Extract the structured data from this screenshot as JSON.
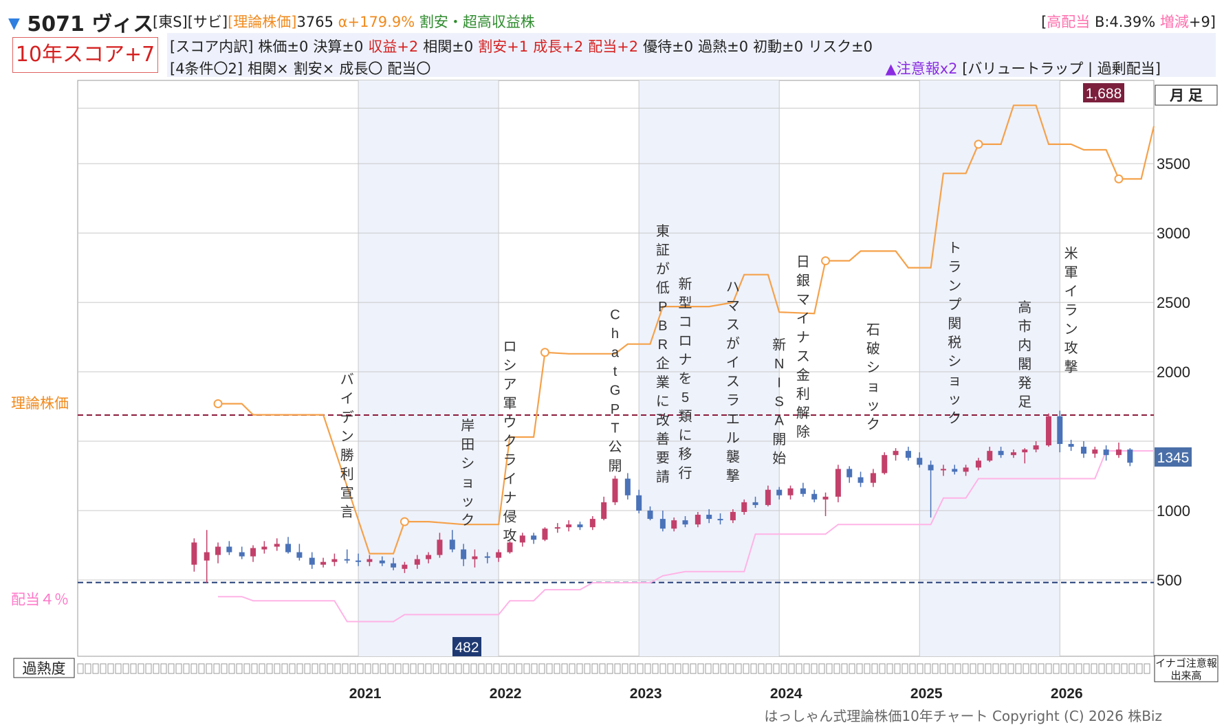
{
  "header": {
    "title": "5071 ヴィス",
    "market": "[東S]",
    "sector": "[サビ]",
    "theory_label": "[理論株価]",
    "theory_value": "3765",
    "alpha": "α+179.9%",
    "tags": "割安・超高収益株",
    "right_bracket_open": "[",
    "right_label": "高配当",
    "right_b": "B:4.39%",
    "right_delta_label": "増減",
    "right_delta_value": "+9]"
  },
  "score": {
    "label": "10年スコア+7"
  },
  "breakdown": {
    "line1": [
      {
        "text": "[スコア内訳]",
        "color": "black"
      },
      {
        "text": "株価±0",
        "color": "black"
      },
      {
        "text": "決算±0",
        "color": "black"
      },
      {
        "text": "収益+2",
        "color": "red"
      },
      {
        "text": "相関±0",
        "color": "black"
      },
      {
        "text": "割安+1",
        "color": "red"
      },
      {
        "text": "成長+2",
        "color": "red"
      },
      {
        "text": "配当+2",
        "color": "red"
      },
      {
        "text": "優待±0",
        "color": "black"
      },
      {
        "text": "過熱±0",
        "color": "black"
      },
      {
        "text": "初動±0",
        "color": "black"
      },
      {
        "text": "リスク±0",
        "color": "black"
      }
    ],
    "line2": [
      {
        "text": "[4条件〇2]",
        "color": "black"
      },
      {
        "text": "相関×",
        "color": "black"
      },
      {
        "text": "割安×",
        "color": "black"
      },
      {
        "text": "成長〇",
        "color": "black"
      },
      {
        "text": "配当〇",
        "color": "black"
      }
    ],
    "caution_label": "▲注意報x2",
    "caution_detail": "[バリュートラップ | 過剰配当]"
  },
  "controls": {
    "period_button": "月 足",
    "overheat_label": "過熱度",
    "inago_label": "イナゴ注意報",
    "volume_label": "出来高"
  },
  "footer": {
    "copyright": "はっしゃん式理論株価10年チャート Copyright (C) 2026 株Biz"
  },
  "colors": {
    "up_candle": "#c2406a",
    "down_candle": "#4a72b8",
    "theory_line": "#f5a14a",
    "dividend_line": "#ffb3e6",
    "theory_ref": "#8b1a3a",
    "dividend_ref": "#1f3a73",
    "shade": "#eef2fb"
  },
  "chart_data": {
    "type": "candlestick",
    "y_ticks": [
      500,
      1000,
      1500,
      2000,
      2500,
      3000,
      3500
    ],
    "y_tick_labels": [
      "500",
      "1000",
      "",
      "2000",
      "2500",
      "3000",
      "3500"
    ],
    "ylim": [
      -50,
      4100
    ],
    "x_labels": [
      "2021",
      "2022",
      "2023",
      "2024",
      "2025",
      "2026"
    ],
    "xlim": [
      2019.0,
      2026.67
    ],
    "shaded_years": [
      [
        2021,
        2022
      ],
      [
        2023,
        2024
      ],
      [
        2025,
        2026
      ]
    ],
    "current_price": "1345",
    "period_high": "1,688",
    "period_low": "482",
    "theory_ref_label": "理論株価",
    "theory_ref_value": 1688,
    "dividend_ref_label": "配当４％",
    "dividend_ref_value": 482,
    "theory_price_line": [
      [
        2020.0,
        1770
      ],
      [
        2020.17,
        1770
      ],
      [
        2020.25,
        1690
      ],
      [
        2020.67,
        1690
      ],
      [
        2020.75,
        1690
      ],
      [
        2021.08,
        690
      ],
      [
        2021.25,
        690
      ],
      [
        2021.33,
        920
      ],
      [
        2021.5,
        920
      ],
      [
        2021.75,
        900
      ],
      [
        2022.0,
        900
      ],
      [
        2022.08,
        1530
      ],
      [
        2022.25,
        1530
      ],
      [
        2022.33,
        2140
      ],
      [
        2022.5,
        2130
      ],
      [
        2022.83,
        2130
      ],
      [
        2022.92,
        2200
      ],
      [
        2023.08,
        2200
      ],
      [
        2023.17,
        2470
      ],
      [
        2023.42,
        2470
      ],
      [
        2023.5,
        2470
      ],
      [
        2023.67,
        2500
      ],
      [
        2023.75,
        2700
      ],
      [
        2023.92,
        2700
      ],
      [
        2024.0,
        2430
      ],
      [
        2024.25,
        2420
      ],
      [
        2024.33,
        2800
      ],
      [
        2024.5,
        2800
      ],
      [
        2024.58,
        2870
      ],
      [
        2024.83,
        2870
      ],
      [
        2024.92,
        2750
      ],
      [
        2025.08,
        2750
      ],
      [
        2025.17,
        3430
      ],
      [
        2025.33,
        3430
      ],
      [
        2025.42,
        3640
      ],
      [
        2025.58,
        3640
      ],
      [
        2025.67,
        3920
      ],
      [
        2025.83,
        3920
      ],
      [
        2025.92,
        3640
      ],
      [
        2026.08,
        3640
      ],
      [
        2026.17,
        3600
      ],
      [
        2026.33,
        3600
      ],
      [
        2026.42,
        3390
      ],
      [
        2026.58,
        3390
      ],
      [
        2026.67,
        3770
      ]
    ],
    "theory_markers": [
      [
        2020.0,
        1770
      ],
      [
        2021.33,
        920
      ],
      [
        2022.33,
        2140
      ],
      [
        2024.33,
        2800
      ],
      [
        2025.42,
        3640
      ],
      [
        2026.42,
        3390
      ]
    ],
    "dividend_price_line": [
      [
        2020.0,
        380
      ],
      [
        2020.17,
        380
      ],
      [
        2020.25,
        350
      ],
      [
        2020.75,
        350
      ],
      [
        2020.83,
        350
      ],
      [
        2020.92,
        200
      ],
      [
        2021.25,
        200
      ],
      [
        2021.33,
        250
      ],
      [
        2021.83,
        250
      ],
      [
        2022.0,
        250
      ],
      [
        2022.08,
        350
      ],
      [
        2022.25,
        350
      ],
      [
        2022.33,
        430
      ],
      [
        2022.58,
        430
      ],
      [
        2022.67,
        480
      ],
      [
        2023.08,
        480
      ],
      [
        2023.17,
        530
      ],
      [
        2023.33,
        560
      ],
      [
        2023.75,
        560
      ],
      [
        2023.83,
        830
      ],
      [
        2024.33,
        830
      ],
      [
        2024.42,
        900
      ],
      [
        2024.83,
        900
      ],
      [
        2025.08,
        900
      ],
      [
        2025.17,
        1090
      ],
      [
        2025.33,
        1090
      ],
      [
        2025.42,
        1230
      ],
      [
        2025.75,
        1230
      ],
      [
        2026.08,
        1230
      ],
      [
        2026.25,
        1230
      ],
      [
        2026.33,
        1430
      ],
      [
        2026.67,
        1430
      ]
    ],
    "candles": [
      {
        "d": 2019.83,
        "o": 610,
        "h": 800,
        "l": 560,
        "c": 770
      },
      {
        "d": 2019.92,
        "o": 640,
        "h": 860,
        "l": 480,
        "c": 700
      },
      {
        "d": 2020.0,
        "o": 680,
        "h": 770,
        "l": 620,
        "c": 740
      },
      {
        "d": 2020.08,
        "o": 740,
        "h": 780,
        "l": 680,
        "c": 700
      },
      {
        "d": 2020.17,
        "o": 700,
        "h": 740,
        "l": 650,
        "c": 670
      },
      {
        "d": 2020.25,
        "o": 670,
        "h": 750,
        "l": 630,
        "c": 730
      },
      {
        "d": 2020.33,
        "o": 720,
        "h": 780,
        "l": 690,
        "c": 740
      },
      {
        "d": 2020.42,
        "o": 740,
        "h": 800,
        "l": 710,
        "c": 760
      },
      {
        "d": 2020.5,
        "o": 760,
        "h": 810,
        "l": 690,
        "c": 700
      },
      {
        "d": 2020.58,
        "o": 700,
        "h": 760,
        "l": 640,
        "c": 660
      },
      {
        "d": 2020.67,
        "o": 660,
        "h": 700,
        "l": 580,
        "c": 610
      },
      {
        "d": 2020.75,
        "o": 610,
        "h": 660,
        "l": 590,
        "c": 630
      },
      {
        "d": 2020.83,
        "o": 630,
        "h": 690,
        "l": 600,
        "c": 650
      },
      {
        "d": 2020.92,
        "o": 650,
        "h": 720,
        "l": 620,
        "c": 640
      },
      {
        "d": 2021.0,
        "o": 640,
        "h": 690,
        "l": 600,
        "c": 630
      },
      {
        "d": 2021.08,
        "o": 630,
        "h": 680,
        "l": 600,
        "c": 650
      },
      {
        "d": 2021.17,
        "o": 640,
        "h": 670,
        "l": 600,
        "c": 620
      },
      {
        "d": 2021.25,
        "o": 620,
        "h": 660,
        "l": 570,
        "c": 590
      },
      {
        "d": 2021.33,
        "o": 580,
        "h": 630,
        "l": 550,
        "c": 610
      },
      {
        "d": 2021.42,
        "o": 610,
        "h": 680,
        "l": 580,
        "c": 650
      },
      {
        "d": 2021.5,
        "o": 650,
        "h": 700,
        "l": 620,
        "c": 680
      },
      {
        "d": 2021.58,
        "o": 680,
        "h": 840,
        "l": 660,
        "c": 790
      },
      {
        "d": 2021.67,
        "o": 790,
        "h": 860,
        "l": 700,
        "c": 720
      },
      {
        "d": 2021.75,
        "o": 720,
        "h": 760,
        "l": 600,
        "c": 650
      },
      {
        "d": 2021.83,
        "o": 650,
        "h": 720,
        "l": 590,
        "c": 670
      },
      {
        "d": 2021.92,
        "o": 670,
        "h": 700,
        "l": 620,
        "c": 660
      },
      {
        "d": 2022.0,
        "o": 660,
        "h": 720,
        "l": 630,
        "c": 700
      },
      {
        "d": 2022.08,
        "o": 700,
        "h": 780,
        "l": 690,
        "c": 770
      },
      {
        "d": 2022.17,
        "o": 770,
        "h": 840,
        "l": 740,
        "c": 820
      },
      {
        "d": 2022.25,
        "o": 820,
        "h": 840,
        "l": 760,
        "c": 790
      },
      {
        "d": 2022.33,
        "o": 790,
        "h": 880,
        "l": 780,
        "c": 870
      },
      {
        "d": 2022.42,
        "o": 870,
        "h": 910,
        "l": 840,
        "c": 880
      },
      {
        "d": 2022.5,
        "o": 880,
        "h": 930,
        "l": 850,
        "c": 900
      },
      {
        "d": 2022.58,
        "o": 900,
        "h": 920,
        "l": 860,
        "c": 880
      },
      {
        "d": 2022.67,
        "o": 880,
        "h": 960,
        "l": 860,
        "c": 940
      },
      {
        "d": 2022.75,
        "o": 940,
        "h": 1100,
        "l": 930,
        "c": 1060
      },
      {
        "d": 2022.83,
        "o": 1060,
        "h": 1250,
        "l": 1040,
        "c": 1230
      },
      {
        "d": 2022.92,
        "o": 1230,
        "h": 1270,
        "l": 1080,
        "c": 1110
      },
      {
        "d": 2023.0,
        "o": 1110,
        "h": 1150,
        "l": 980,
        "c": 1000
      },
      {
        "d": 2023.08,
        "o": 1000,
        "h": 1030,
        "l": 930,
        "c": 940
      },
      {
        "d": 2023.17,
        "o": 940,
        "h": 1000,
        "l": 850,
        "c": 870
      },
      {
        "d": 2023.25,
        "o": 870,
        "h": 950,
        "l": 850,
        "c": 930
      },
      {
        "d": 2023.33,
        "o": 930,
        "h": 960,
        "l": 880,
        "c": 900
      },
      {
        "d": 2023.42,
        "o": 900,
        "h": 990,
        "l": 880,
        "c": 970
      },
      {
        "d": 2023.5,
        "o": 970,
        "h": 1010,
        "l": 910,
        "c": 940
      },
      {
        "d": 2023.58,
        "o": 940,
        "h": 980,
        "l": 900,
        "c": 930
      },
      {
        "d": 2023.67,
        "o": 930,
        "h": 1010,
        "l": 910,
        "c": 990
      },
      {
        "d": 2023.75,
        "o": 990,
        "h": 1080,
        "l": 970,
        "c": 1060
      },
      {
        "d": 2023.83,
        "o": 1060,
        "h": 1100,
        "l": 1020,
        "c": 1040
      },
      {
        "d": 2023.92,
        "o": 1040,
        "h": 1180,
        "l": 1030,
        "c": 1150
      },
      {
        "d": 2024.0,
        "o": 1150,
        "h": 1170,
        "l": 1080,
        "c": 1110
      },
      {
        "d": 2024.08,
        "o": 1110,
        "h": 1180,
        "l": 1080,
        "c": 1160
      },
      {
        "d": 2024.17,
        "o": 1160,
        "h": 1200,
        "l": 1100,
        "c": 1120
      },
      {
        "d": 2024.25,
        "o": 1120,
        "h": 1150,
        "l": 1060,
        "c": 1080
      },
      {
        "d": 2024.33,
        "o": 1080,
        "h": 1130,
        "l": 960,
        "c": 1100
      },
      {
        "d": 2024.42,
        "o": 1100,
        "h": 1330,
        "l": 1060,
        "c": 1300
      },
      {
        "d": 2024.5,
        "o": 1300,
        "h": 1320,
        "l": 1200,
        "c": 1240
      },
      {
        "d": 2024.58,
        "o": 1240,
        "h": 1280,
        "l": 1170,
        "c": 1200
      },
      {
        "d": 2024.67,
        "o": 1200,
        "h": 1300,
        "l": 1170,
        "c": 1270
      },
      {
        "d": 2024.75,
        "o": 1270,
        "h": 1420,
        "l": 1260,
        "c": 1400
      },
      {
        "d": 2024.83,
        "o": 1400,
        "h": 1450,
        "l": 1360,
        "c": 1430
      },
      {
        "d": 2024.92,
        "o": 1430,
        "h": 1460,
        "l": 1360,
        "c": 1380
      },
      {
        "d": 2025.0,
        "o": 1380,
        "h": 1420,
        "l": 1310,
        "c": 1330
      },
      {
        "d": 2025.08,
        "o": 1330,
        "h": 1360,
        "l": 950,
        "c": 1290
      },
      {
        "d": 2025.17,
        "o": 1290,
        "h": 1330,
        "l": 1250,
        "c": 1300
      },
      {
        "d": 2025.25,
        "o": 1300,
        "h": 1330,
        "l": 1260,
        "c": 1280
      },
      {
        "d": 2025.33,
        "o": 1280,
        "h": 1330,
        "l": 1250,
        "c": 1310
      },
      {
        "d": 2025.42,
        "o": 1310,
        "h": 1380,
        "l": 1290,
        "c": 1360
      },
      {
        "d": 2025.5,
        "o": 1360,
        "h": 1460,
        "l": 1350,
        "c": 1430
      },
      {
        "d": 2025.58,
        "o": 1430,
        "h": 1460,
        "l": 1380,
        "c": 1400
      },
      {
        "d": 2025.67,
        "o": 1400,
        "h": 1440,
        "l": 1380,
        "c": 1420
      },
      {
        "d": 2025.75,
        "o": 1420,
        "h": 1450,
        "l": 1340,
        "c": 1440
      },
      {
        "d": 2025.83,
        "o": 1440,
        "h": 1500,
        "l": 1420,
        "c": 1470
      },
      {
        "d": 2025.92,
        "o": 1470,
        "h": 1700,
        "l": 1460,
        "c": 1680
      },
      {
        "d": 2026.0,
        "o": 1680,
        "h": 1720,
        "l": 1420,
        "c": 1480
      },
      {
        "d": 2026.08,
        "o": 1480,
        "h": 1510,
        "l": 1430,
        "c": 1460
      },
      {
        "d": 2026.17,
        "o": 1460,
        "h": 1500,
        "l": 1380,
        "c": 1410
      },
      {
        "d": 2026.25,
        "o": 1410,
        "h": 1460,
        "l": 1380,
        "c": 1440
      },
      {
        "d": 2026.33,
        "o": 1440,
        "h": 1470,
        "l": 1360,
        "c": 1400
      },
      {
        "d": 2026.42,
        "o": 1400,
        "h": 1490,
        "l": 1380,
        "c": 1440
      },
      {
        "d": 2026.5,
        "o": 1440,
        "h": 1450,
        "l": 1320,
        "c": 1345
      }
    ],
    "events": [
      {
        "d": 2020.92,
        "top": 1910,
        "text": "バイデン勝利宣言"
      },
      {
        "d": 2021.78,
        "top": 1580,
        "text": "岸田ショック"
      },
      {
        "d": 2022.08,
        "top": 2150,
        "text": "ロシア軍ウクライナ侵攻"
      },
      {
        "d": 2022.83,
        "top": 2380,
        "text": "ChatGPT公開"
      },
      {
        "d": 2023.17,
        "top": 2980,
        "text": "東証が低PBR企業に改善要請"
      },
      {
        "d": 2023.33,
        "top": 2600,
        "text": "新型コロナを5類に移行"
      },
      {
        "d": 2023.67,
        "top": 2580,
        "text": "ハマスがイスラエル襲撃"
      },
      {
        "d": 2024.0,
        "top": 2160,
        "text": "新NISA開始"
      },
      {
        "d": 2024.17,
        "top": 2760,
        "text": "日銀マイナス金利解除"
      },
      {
        "d": 2024.67,
        "top": 2270,
        "text": "石破ショック"
      },
      {
        "d": 2025.25,
        "top": 2860,
        "text": "トランプ関税ショック"
      },
      {
        "d": 2025.75,
        "top": 2430,
        "text": "高市内閣発足"
      },
      {
        "d": 2026.08,
        "top": 2820,
        "text": "米軍イラン攻撃"
      }
    ]
  }
}
